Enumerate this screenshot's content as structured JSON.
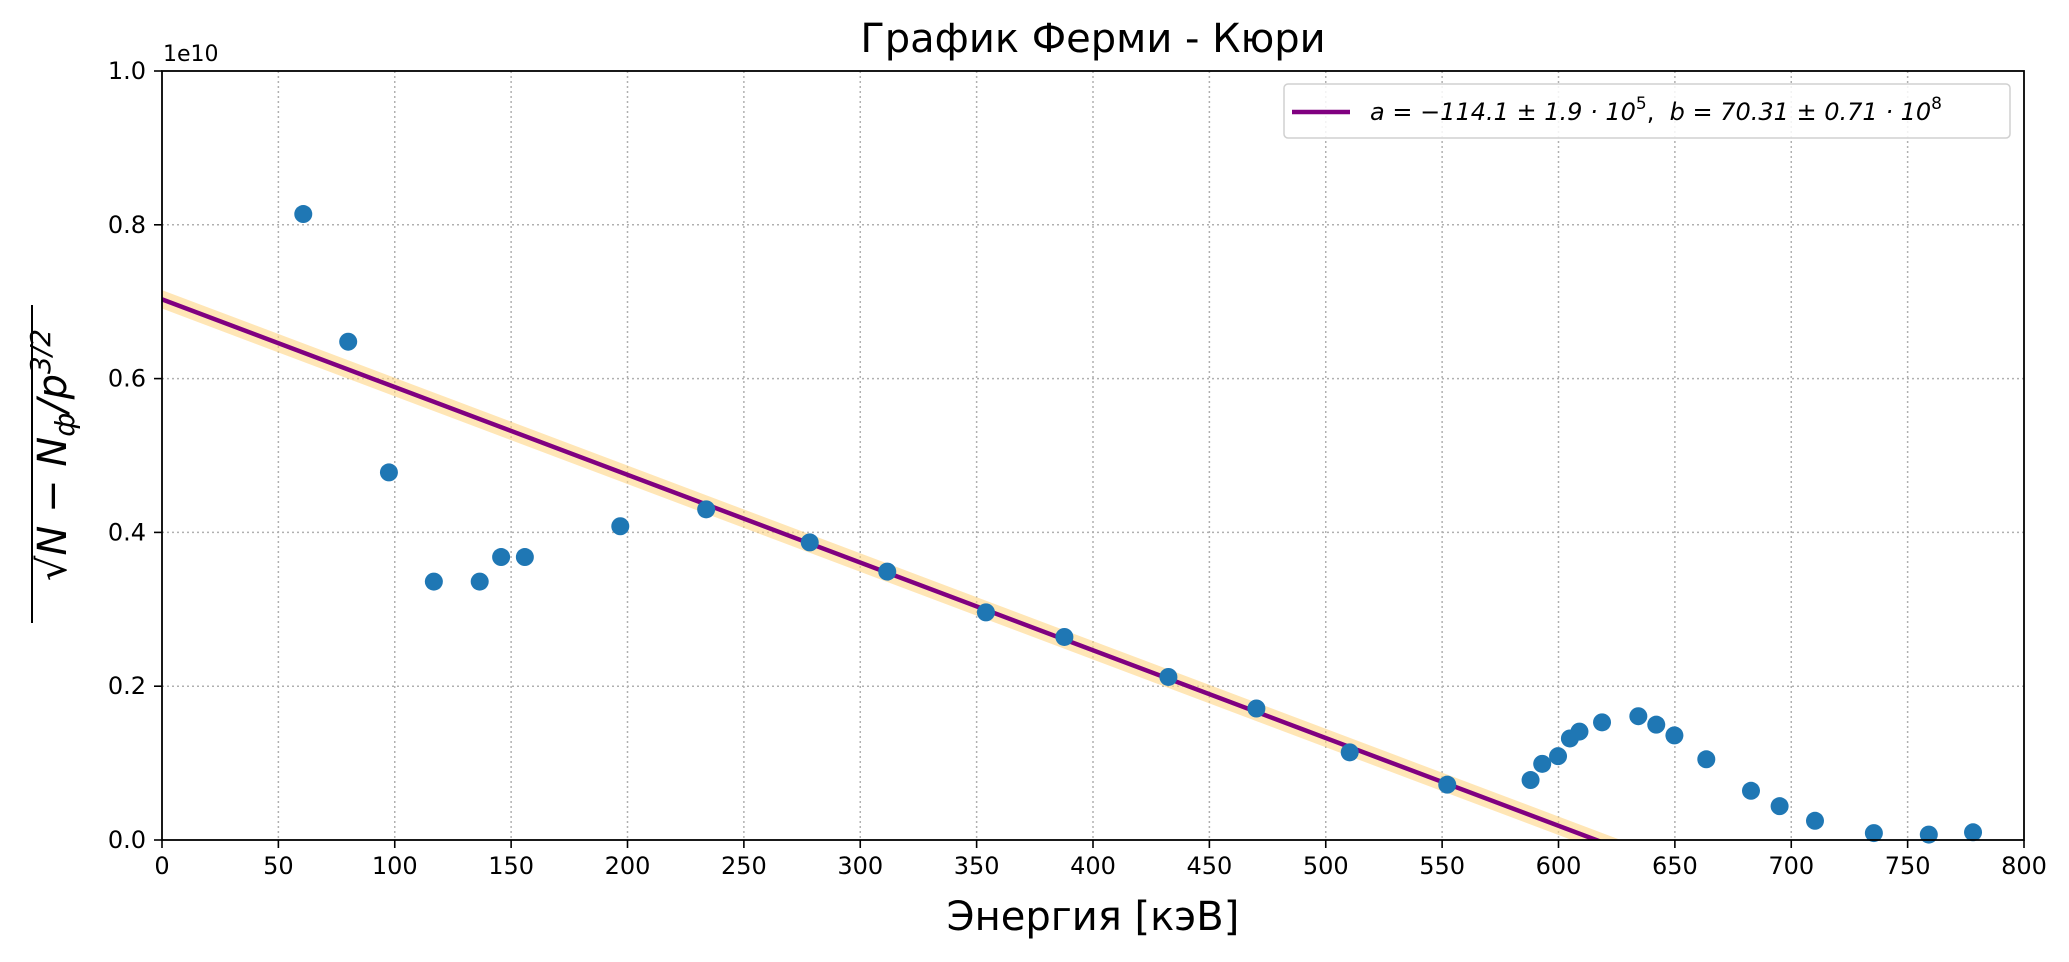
{
  "chart_data": {
    "type": "scatter",
    "title": "График Ферми - Кюри",
    "xlabel": "Энергия [кэВ]",
    "ylabel": "√N − N_ф / p^{3/2}",
    "ylabel_parts": {
      "root": "√",
      "body": "N − N",
      "sub": "ф",
      "slash": "/p",
      "sup": "3/2"
    },
    "y_multiplier": "1e10",
    "xlim": [
      0,
      800
    ],
    "ylim": [
      0,
      1.0
    ],
    "x_ticks": [
      0,
      50,
      100,
      150,
      200,
      250,
      300,
      350,
      400,
      450,
      500,
      550,
      600,
      650,
      700,
      750,
      800
    ],
    "x_tick_labels": [
      "0",
      "50",
      "100",
      "150",
      "200",
      "250",
      "300",
      "350",
      "400",
      "450",
      "500",
      "550",
      "600",
      "650",
      "700",
      "750",
      "800"
    ],
    "y_ticks": [
      0,
      0.2,
      0.4,
      0.6,
      0.8,
      1.0
    ],
    "y_tick_labels": [
      "0.0",
      "0.2",
      "0.4",
      "0.6",
      "0.8",
      "1.0"
    ],
    "grid": true,
    "legend_position": "top-right",
    "points": [
      [
        60.7,
        0.814
      ],
      [
        80.0,
        0.648
      ],
      [
        97.5,
        0.478
      ],
      [
        116.8,
        0.336
      ],
      [
        136.5,
        0.336
      ],
      [
        145.7,
        0.368
      ],
      [
        155.9,
        0.368
      ],
      [
        196.9,
        0.408
      ],
      [
        233.8,
        0.43
      ],
      [
        278.3,
        0.387
      ],
      [
        311.6,
        0.349
      ],
      [
        354.0,
        0.296
      ],
      [
        387.7,
        0.264
      ],
      [
        432.4,
        0.212
      ],
      [
        470.2,
        0.171
      ],
      [
        510.3,
        0.114
      ],
      [
        552.2,
        0.072
      ],
      [
        588.0,
        0.078
      ],
      [
        593.0,
        0.099
      ],
      [
        599.8,
        0.109
      ],
      [
        604.9,
        0.132
      ],
      [
        609.0,
        0.141
      ],
      [
        618.7,
        0.153
      ],
      [
        634.3,
        0.161
      ],
      [
        642.0,
        0.15
      ],
      [
        649.8,
        0.136
      ],
      [
        663.5,
        0.105
      ],
      [
        682.7,
        0.064
      ],
      [
        695.0,
        0.044
      ],
      [
        710.2,
        0.025
      ],
      [
        735.5,
        0.009
      ],
      [
        759.1,
        0.007
      ],
      [
        778.1,
        0.01
      ]
    ],
    "fit": {
      "slope": -0.001141,
      "intercept": 0.7031,
      "band": 0.012,
      "x_range": [
        0,
        630
      ]
    },
    "legend": {
      "label_a": "a = −114.1 ± 1.9 · 10",
      "label_a_exp": "5",
      "label_sep": ",  ",
      "label_b": "b = 70.31 ± 0.71 · 10",
      "label_b_exp": "8"
    },
    "colors": {
      "points": "#1f77b4",
      "fit": "#800080",
      "band": "#ffd27a"
    }
  }
}
